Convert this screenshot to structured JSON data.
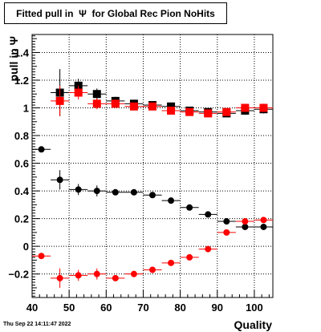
{
  "title": "Fitted pull in  Ψ  for Global Rec Pion NoHits",
  "timestamp": "Thu Sep 22 14:11:47 2022",
  "colors": {
    "black_series": "#000000",
    "red_series": "#ff0000",
    "grid": "#000000",
    "frame": "#000000"
  },
  "chart_data": {
    "type": "scatter",
    "title": "Fitted pull in  Ψ  for Global Rec Pion NoHits",
    "xlabel": "Quality",
    "ylabel": "pull in Ψ",
    "xlim": [
      40,
      105
    ],
    "ylim": [
      -0.37,
      1.53
    ],
    "xticks": [
      40,
      50,
      60,
      70,
      80,
      90,
      100
    ],
    "xtick_labels": [
      "40",
      "50",
      "60",
      "70",
      "80",
      "90",
      "100"
    ],
    "yticks": [
      -0.2,
      0,
      0.2,
      0.4,
      0.6,
      0.8,
      1,
      1.2,
      1.4
    ],
    "ytick_labels": [
      "−0.2",
      "0",
      "0.2",
      "0.4",
      "0.6",
      "0.8",
      "1",
      "1.2",
      "1.4"
    ],
    "grid": true,
    "series": [
      {
        "marker": "square",
        "color": "#000000",
        "x": [
          47.5,
          52.5,
          57.5,
          62.5,
          67.5,
          72.5,
          77.5,
          82.5,
          87.5,
          92.5,
          97.5,
          102.5
        ],
        "y": [
          1.11,
          1.16,
          1.1,
          1.05,
          1.03,
          1.02,
          1.01,
          0.98,
          0.97,
          0.96,
          0.98,
          0.99
        ],
        "yerr": [
          0.17,
          0.05,
          0.04,
          0.03,
          0.02,
          0.02,
          0.02,
          0.02,
          0.02,
          0.02,
          0.03,
          0.03
        ],
        "xerr": 2.5
      },
      {
        "marker": "square",
        "color": "#ff0000",
        "x": [
          47.5,
          52.5,
          57.5,
          62.5,
          67.5,
          72.5,
          77.5,
          82.5,
          87.5,
          92.5,
          97.5,
          102.5
        ],
        "y": [
          1.05,
          1.11,
          1.03,
          1.03,
          1.01,
          1.01,
          0.98,
          0.97,
          0.96,
          0.97,
          1.0,
          1.0
        ],
        "yerr": [
          0.11,
          0.05,
          0.04,
          0.03,
          0.02,
          0.02,
          0.02,
          0.02,
          0.02,
          0.02,
          0.03,
          0.03
        ],
        "xerr": 2.5
      },
      {
        "marker": "circle",
        "color": "#000000",
        "x": [
          42.5,
          47.5,
          52.5,
          57.5,
          62.5,
          67.5,
          72.5,
          77.5,
          82.5,
          87.5,
          92.5,
          97.5,
          102.5
        ],
        "y": [
          0.7,
          0.48,
          0.41,
          0.4,
          0.39,
          0.39,
          0.37,
          0.33,
          0.28,
          0.23,
          0.18,
          0.14,
          0.14
        ],
        "yerr": [
          0.0,
          0.07,
          0.04,
          0.04,
          0.02,
          0.02,
          0.02,
          0.02,
          0.02,
          0.02,
          0.02,
          0.02,
          0.02
        ],
        "xerr": 2.5
      },
      {
        "marker": "circle",
        "color": "#ff0000",
        "x": [
          42.5,
          47.5,
          52.5,
          57.5,
          62.5,
          67.5,
          72.5,
          77.5,
          82.5,
          87.5,
          92.5,
          97.5,
          102.5
        ],
        "y": [
          -0.07,
          -0.23,
          -0.21,
          -0.2,
          -0.23,
          -0.2,
          -0.17,
          -0.12,
          -0.08,
          -0.02,
          0.1,
          0.18,
          0.19
        ],
        "yerr": [
          0.0,
          0.07,
          0.04,
          0.04,
          0.02,
          0.02,
          0.02,
          0.02,
          0.02,
          0.02,
          0.02,
          0.02,
          0.02
        ],
        "xerr": 2.5
      }
    ]
  }
}
